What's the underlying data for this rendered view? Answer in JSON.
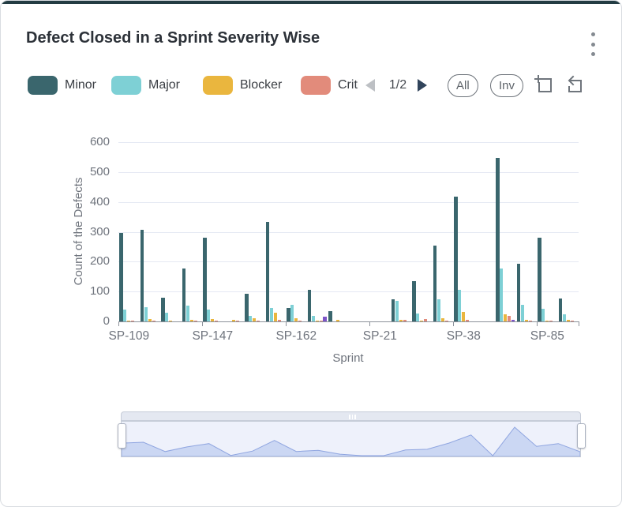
{
  "header": {
    "title": "Defect Closed in a Sprint Severity Wise"
  },
  "icons": {
    "menu": "kebab-menu",
    "legend_prev": "triangle-left",
    "legend_next": "triangle-right",
    "zoom_select": "area-zoom-plus",
    "zoom_reset": "zoom-back-arrow",
    "slider_grip": "drag-handle"
  },
  "legend": {
    "page": "1/2",
    "prev_enabled": false,
    "next_enabled": true,
    "items": [
      {
        "label": "Minor",
        "color": "#3a666d",
        "clipped": false
      },
      {
        "label": "Major",
        "color": "#7ed0d5",
        "clipped": false
      },
      {
        "label": "Blocker",
        "color": "#eab63e",
        "clipped": false
      },
      {
        "label": "Critical",
        "color": "#e28b7b",
        "clipped": true
      }
    ]
  },
  "toolbar": {
    "all_label": "All",
    "inv_label": "Inv"
  },
  "chart_data": {
    "type": "bar",
    "title": "Defect Closed in a Sprint Severity Wise",
    "xlabel": "Sprint",
    "ylabel": "Count of the Defects",
    "ylim": [
      0,
      600
    ],
    "y_ticks": [
      0,
      100,
      200,
      300,
      400,
      500,
      600
    ],
    "grid": true,
    "legend_position": "top",
    "num_categories": 22,
    "x_tick_labels": [
      {
        "index": 0,
        "label": "SP-109"
      },
      {
        "index": 4,
        "label": "SP-147"
      },
      {
        "index": 8,
        "label": "SP-162"
      },
      {
        "index": 12,
        "label": "SP-21"
      },
      {
        "index": 16,
        "label": "SP-38"
      },
      {
        "index": 20,
        "label": "SP-85"
      }
    ],
    "x_axis_boundary_ticks": [
      0,
      4,
      8,
      12,
      16,
      20,
      22
    ],
    "series": [
      {
        "name": "Minor",
        "color": "#3a666d",
        "values": [
          295,
          308,
          80,
          178,
          280,
          0,
          93,
          333,
          44,
          107,
          35,
          0,
          0,
          75,
          136,
          254,
          419,
          0,
          548,
          192,
          281,
          77
        ]
      },
      {
        "name": "Major",
        "color": "#7ed0d5",
        "values": [
          40,
          47,
          28,
          53,
          40,
          0,
          18,
          46,
          55,
          18,
          0,
          0,
          0,
          68,
          27,
          73,
          107,
          0,
          178,
          55,
          42,
          23
        ]
      },
      {
        "name": "Blocker",
        "color": "#eab63e",
        "values": [
          4,
          9,
          3,
          6,
          8,
          5,
          11,
          30,
          12,
          4,
          5,
          0,
          0,
          6,
          4,
          12,
          31,
          0,
          25,
          5,
          3,
          5
        ]
      },
      {
        "name": "Critical",
        "color": "#e28b7b",
        "values": [
          3,
          2,
          0,
          2,
          2,
          2,
          2,
          5,
          4,
          2,
          0,
          0,
          0,
          5,
          8,
          4,
          6,
          0,
          18,
          2,
          4,
          2
        ]
      },
      {
        "name": "unlabeled-purple-series",
        "color": "#7d55c8",
        "values": [
          0,
          0,
          0,
          0,
          0,
          0,
          0,
          0,
          0,
          16,
          0,
          0,
          0,
          0,
          0,
          0,
          0,
          0,
          5,
          0,
          0,
          0
        ]
      }
    ]
  },
  "data_zoom": {
    "shadow_fill": "#cbd7f3",
    "shadow_line": "#8fa5e0",
    "selected_range": "full"
  }
}
